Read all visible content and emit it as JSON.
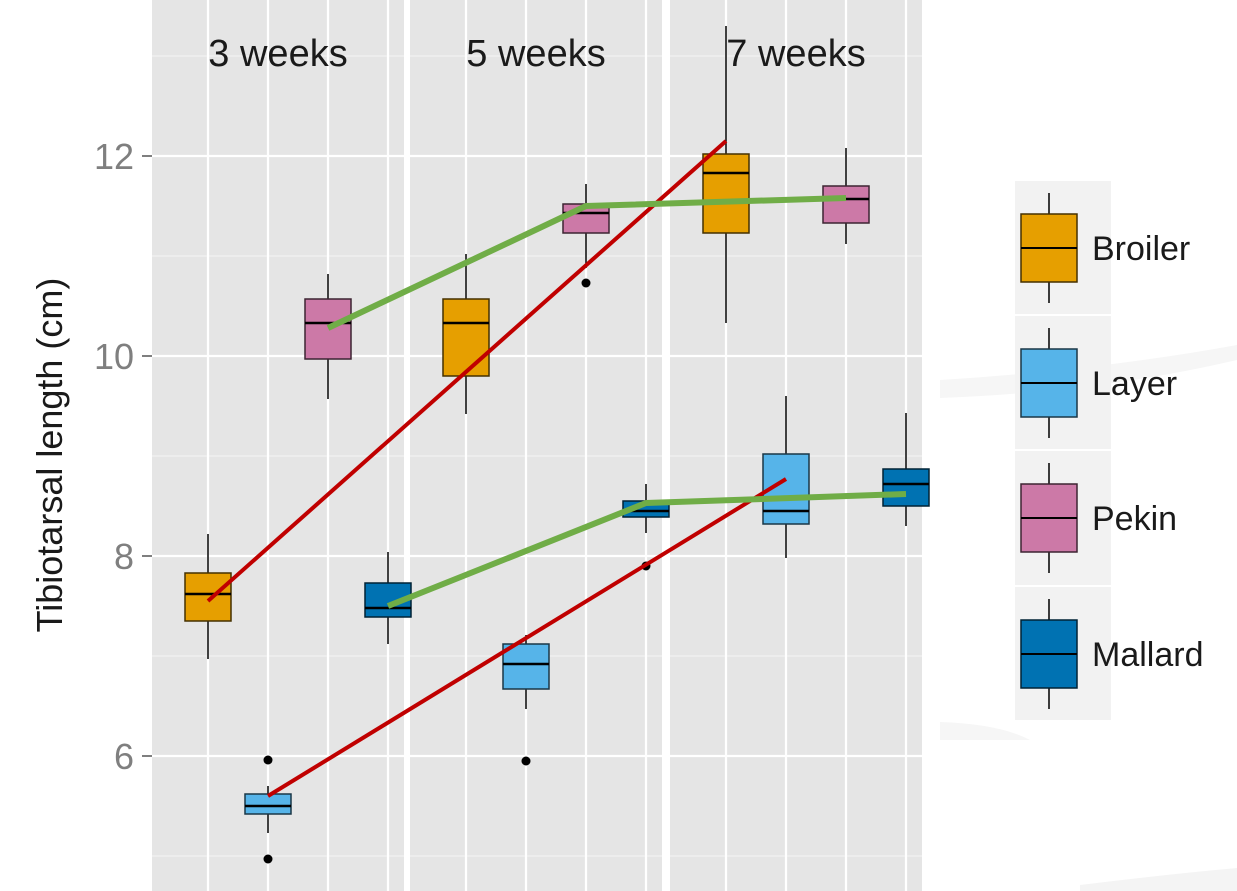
{
  "chart_data": {
    "type": "box",
    "ylabel": "Tibiotarsal length  (cm)",
    "xlabel": "",
    "title": "",
    "ylim": [
      4.7,
      13.5
    ],
    "yticks": [
      6,
      8,
      10,
      12
    ],
    "grid": true,
    "legend_position": "right",
    "facets": [
      "3 weeks",
      "5 weeks",
      "7 weeks"
    ],
    "groups": [
      "Broiler",
      "Layer",
      "Pekin",
      "Mallard"
    ],
    "colors": {
      "Broiler": "#E69F00",
      "Layer": "#56B4E9",
      "Pekin": "#CC79A7",
      "Mallard": "#0072B2"
    },
    "boxes": [
      {
        "facet": "3 weeks",
        "group": "Broiler",
        "whisker_low": 6.97,
        "q1": 7.35,
        "median": 7.62,
        "q3": 7.83,
        "whisker_high": 8.22,
        "outliers": []
      },
      {
        "facet": "3 weeks",
        "group": "Layer",
        "whisker_low": 5.23,
        "q1": 5.42,
        "median": 5.5,
        "q3": 5.62,
        "whisker_high": 5.7,
        "outliers": [
          5.96,
          4.97
        ]
      },
      {
        "facet": "3 weeks",
        "group": "Pekin",
        "whisker_low": 9.57,
        "q1": 9.97,
        "median": 10.33,
        "q3": 10.57,
        "whisker_high": 10.82,
        "outliers": []
      },
      {
        "facet": "3 weeks",
        "group": "Mallard",
        "whisker_low": 7.12,
        "q1": 7.39,
        "median": 7.48,
        "q3": 7.73,
        "whisker_high": 8.04,
        "outliers": []
      },
      {
        "facet": "5 weeks",
        "group": "Broiler",
        "whisker_low": 9.42,
        "q1": 9.8,
        "median": 10.33,
        "q3": 10.57,
        "whisker_high": 11.02,
        "outliers": []
      },
      {
        "facet": "5 weeks",
        "group": "Layer",
        "whisker_low": 6.47,
        "q1": 6.67,
        "median": 6.92,
        "q3": 7.12,
        "whisker_high": 7.21,
        "outliers": [
          5.95
        ]
      },
      {
        "facet": "5 weeks",
        "group": "Pekin",
        "whisker_low": 10.88,
        "q1": 11.23,
        "median": 11.43,
        "q3": 11.52,
        "whisker_high": 11.72,
        "outliers": [
          10.73
        ]
      },
      {
        "facet": "5 weeks",
        "group": "Mallard",
        "whisker_low": 8.23,
        "q1": 8.39,
        "median": 8.45,
        "q3": 8.55,
        "whisker_high": 8.72,
        "outliers": [
          7.9
        ]
      },
      {
        "facet": "7 weeks",
        "group": "Broiler",
        "whisker_low": 10.33,
        "q1": 11.23,
        "median": 11.83,
        "q3": 12.02,
        "whisker_high": 13.3,
        "outliers": []
      },
      {
        "facet": "7 weeks",
        "group": "Layer",
        "whisker_low": 7.98,
        "q1": 8.32,
        "median": 8.45,
        "q3": 9.02,
        "whisker_high": 9.6,
        "outliers": []
      },
      {
        "facet": "7 weeks",
        "group": "Pekin",
        "whisker_low": 11.12,
        "q1": 11.33,
        "median": 11.57,
        "q3": 11.7,
        "whisker_high": 12.08,
        "outliers": []
      },
      {
        "facet": "7 weeks",
        "group": "Mallard",
        "whisker_low": 8.3,
        "q1": 8.5,
        "median": 8.72,
        "q3": 8.87,
        "whisker_high": 9.43,
        "outliers": []
      }
    ],
    "trend_lines": [
      {
        "color": "#C00000",
        "points": [
          {
            "facet": "3 weeks",
            "group": "Broiler",
            "y": 7.55
          },
          {
            "facet": "7 weeks",
            "group": "Broiler",
            "y": 12.15
          }
        ]
      },
      {
        "color": "#C00000",
        "points": [
          {
            "facet": "3 weeks",
            "group": "Layer",
            "y": 5.6
          },
          {
            "facet": "7 weeks",
            "group": "Layer",
            "y": 8.77
          }
        ]
      },
      {
        "color": "#70AD47",
        "points": [
          {
            "facet": "3 weeks",
            "group": "Pekin",
            "y": 10.28
          },
          {
            "facet": "5 weeks",
            "group": "Pekin",
            "y": 11.5
          },
          {
            "facet": "7 weeks",
            "group": "Pekin",
            "y": 11.58
          }
        ]
      },
      {
        "color": "#70AD47",
        "points": [
          {
            "facet": "3 weeks",
            "group": "Mallard",
            "y": 7.5
          },
          {
            "facet": "5 weeks",
            "group": "Mallard",
            "y": 8.53
          },
          {
            "facet": "7 weeks",
            "group": "Mallard",
            "y": 8.62
          }
        ]
      }
    ]
  }
}
